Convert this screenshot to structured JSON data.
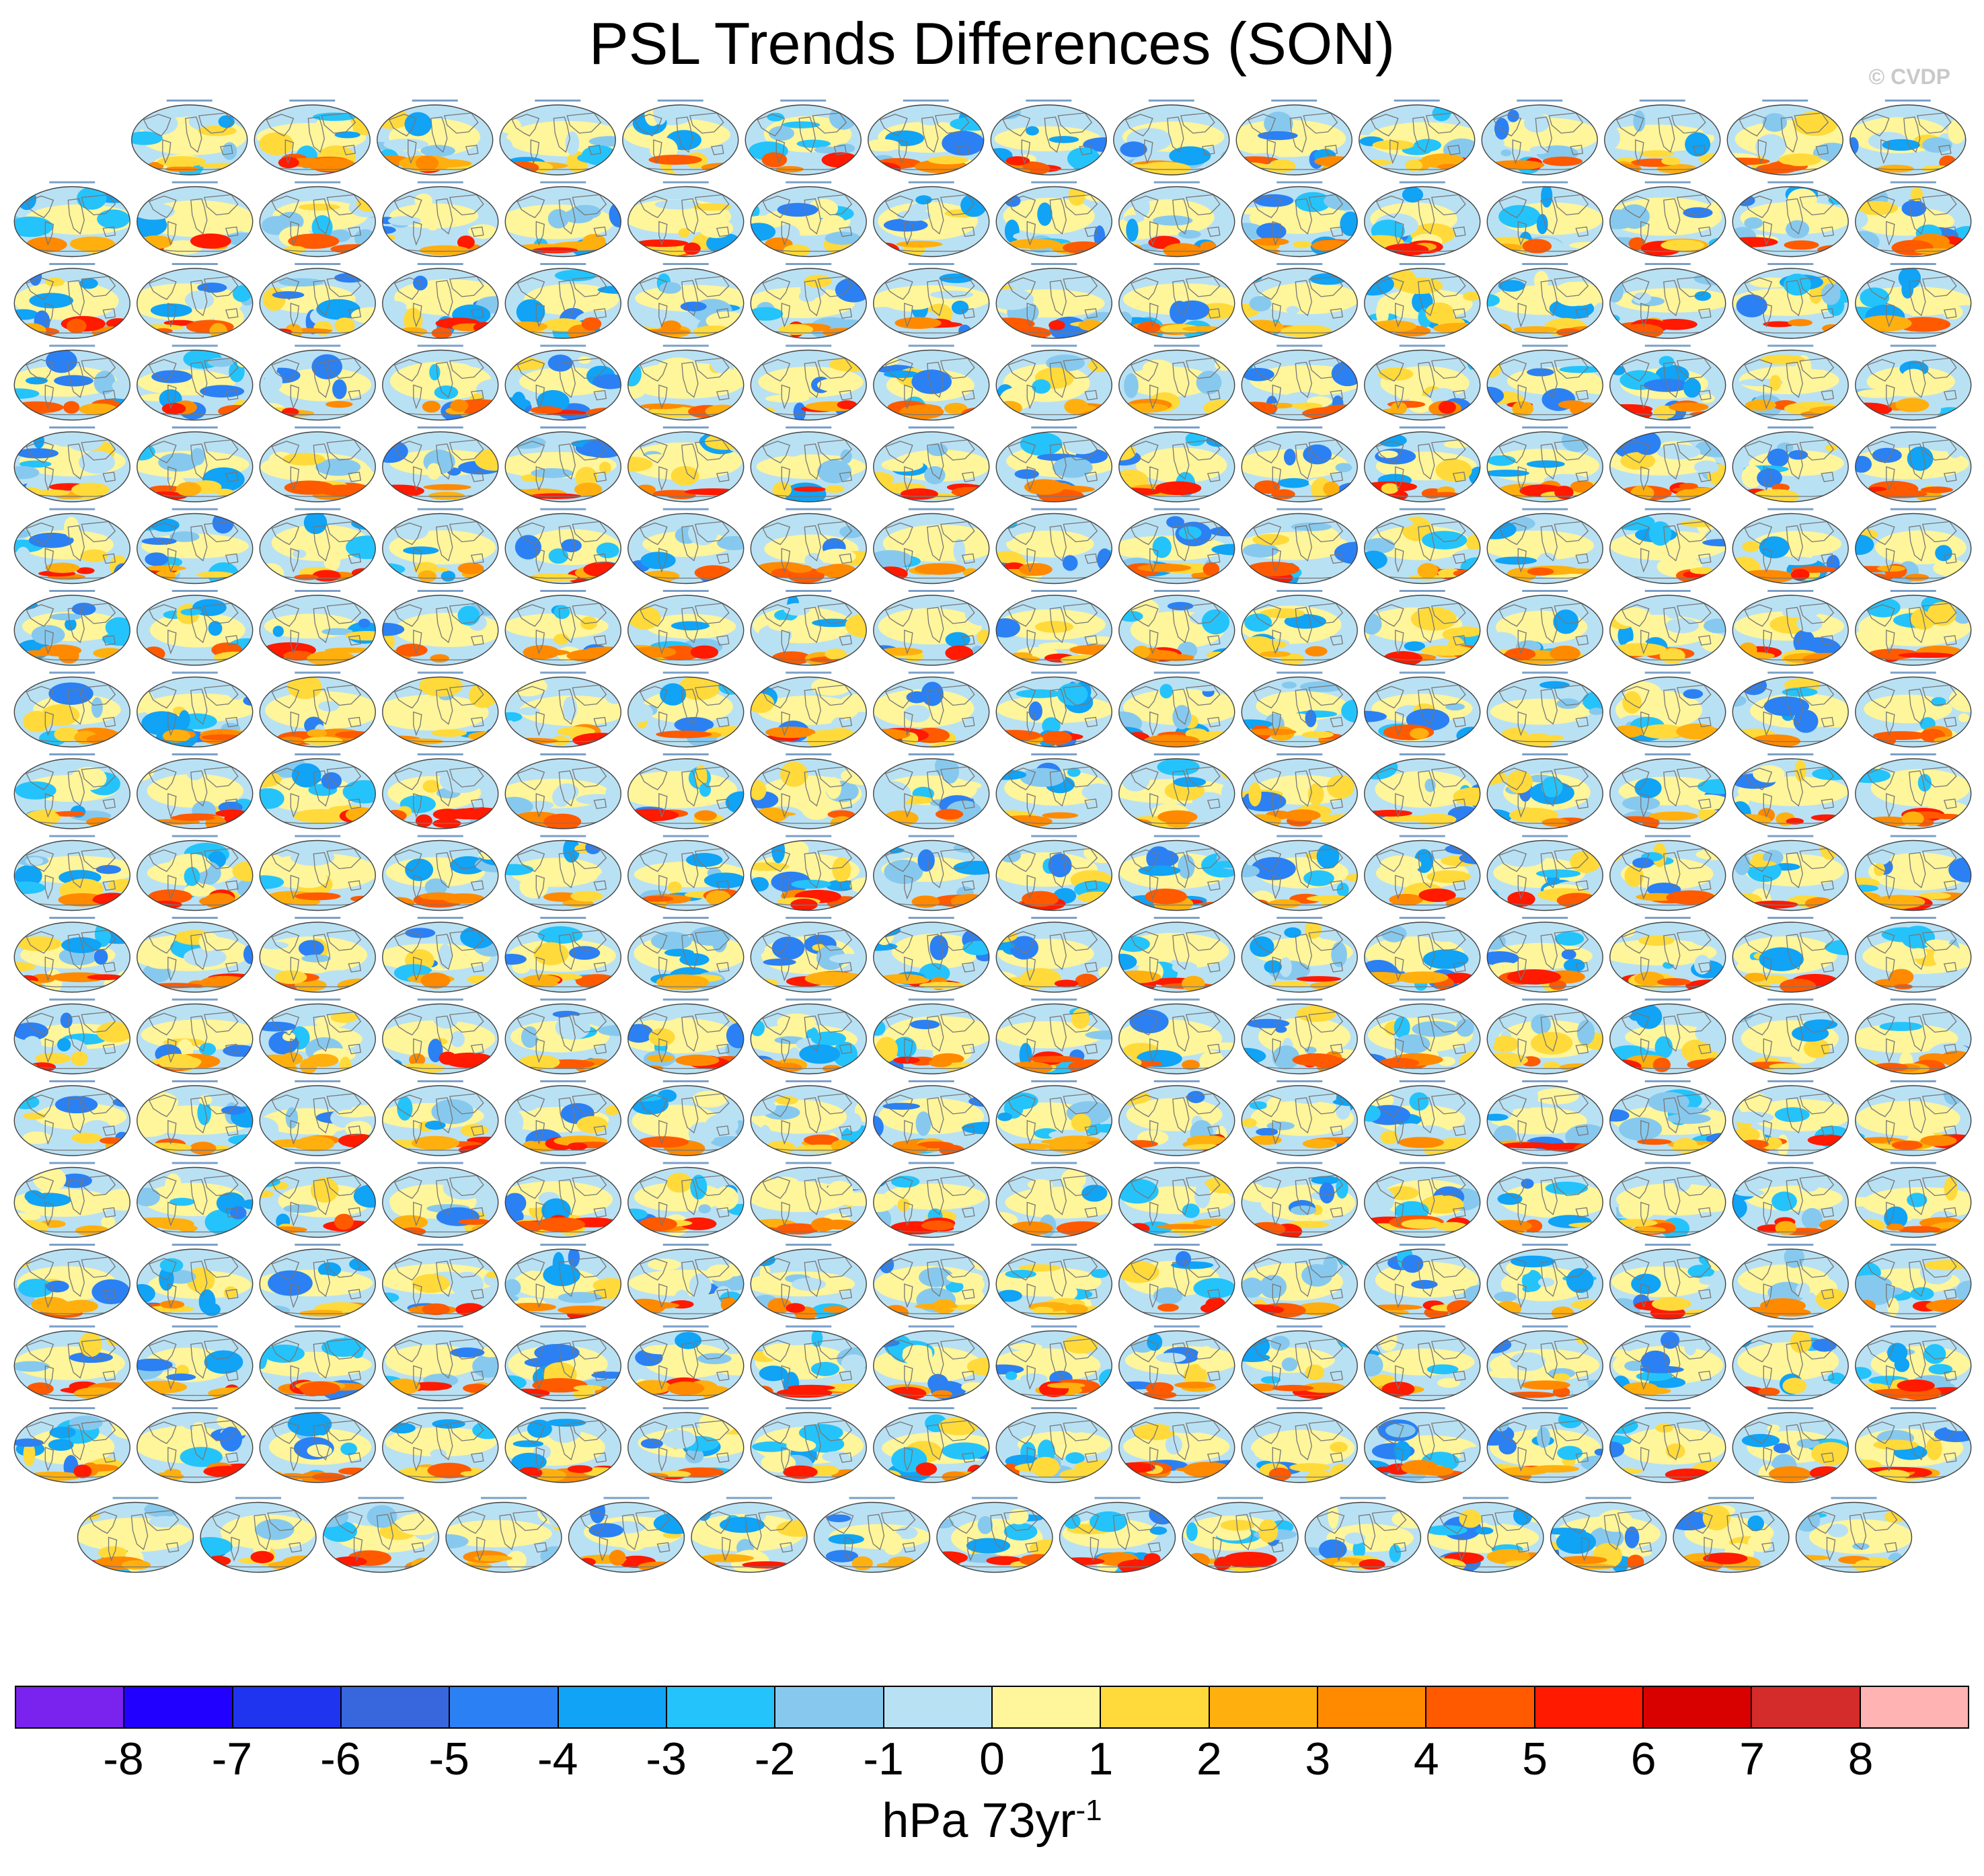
{
  "chart_data": {
    "type": "heatmap",
    "title": "PSL Trends Differences (SON)",
    "copyright": "© CVDP",
    "colorbar": {
      "ticks": [
        "-8",
        "-7",
        "-6",
        "-5",
        "-4",
        "-3",
        "-2",
        "-1",
        "0",
        "1",
        "2",
        "3",
        "4",
        "5",
        "6",
        "7",
        "8"
      ],
      "units": "hPa 73yr",
      "units_superscript": "-1",
      "colors": [
        "#7a22ee",
        "#2200ff",
        "#1f34ee",
        "#3866dd",
        "#2b80f3",
        "#10a3f6",
        "#25c3fb",
        "#87c9ee",
        "#b9e1f4",
        "#fff59a",
        "#ffda3a",
        "#ffb00f",
        "#ff8a00",
        "#ff5a00",
        "#ff1a00",
        "#d90000",
        "#d42b2b",
        "#ffb3b3"
      ]
    },
    "panel_rows": [
      15,
      16,
      16,
      16,
      16,
      16,
      16,
      16,
      16,
      16,
      16,
      16,
      16,
      16,
      16,
      16,
      16,
      15
    ],
    "ocean_color": "#b9e1f4",
    "land_color": "#fff59a"
  }
}
